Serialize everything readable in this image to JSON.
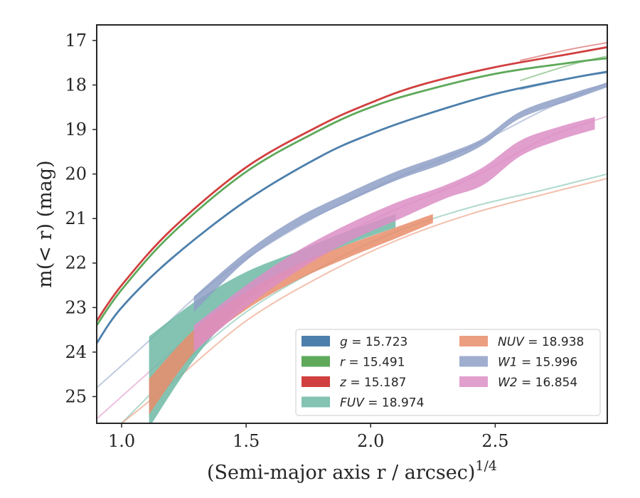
{
  "chart_data": {
    "type": "line",
    "xlabel": "(Semi-major axis r / arcsec)",
    "xlabel_sup": "1/4",
    "ylabel": "m(< r) (mag)",
    "xlim": [
      0.9,
      2.95
    ],
    "ylim": [
      25.6,
      16.65
    ],
    "y_inverted": true,
    "xticks": [
      1.0,
      1.5,
      2.0,
      2.5
    ],
    "xtick_labels": [
      "1.0",
      "1.5",
      "2.0",
      "2.5"
    ],
    "yticks": [
      17,
      18,
      19,
      20,
      21,
      22,
      23,
      24,
      25
    ],
    "ytick_labels": [
      "17",
      "18",
      "19",
      "20",
      "21",
      "22",
      "23",
      "24",
      "25"
    ],
    "legend_position": "lower-right",
    "legend_columns": 2,
    "series": [
      {
        "name": "g = 15.723",
        "var": "g",
        "val": "15.723",
        "color": "#4c7fab",
        "kind": "line",
        "x": [
          0.9,
          1.0,
          1.2,
          1.5,
          1.8,
          2.0,
          2.2,
          2.5,
          2.8,
          2.95
        ],
        "y": [
          23.8,
          23.0,
          21.9,
          20.6,
          19.6,
          19.1,
          18.7,
          18.2,
          17.85,
          17.7
        ]
      },
      {
        "name": "r = 15.491",
        "var": "r",
        "val": "15.491",
        "color": "#5ea95a",
        "kind": "line",
        "x": [
          0.9,
          1.0,
          1.2,
          1.5,
          1.8,
          2.0,
          2.2,
          2.5,
          2.8,
          2.95
        ],
        "y": [
          23.4,
          22.6,
          21.35,
          19.95,
          19.0,
          18.5,
          18.15,
          17.75,
          17.5,
          17.4
        ]
      },
      {
        "name": "z = 15.187",
        "var": "z",
        "val": "15.187",
        "color": "#d13f3f",
        "kind": "line",
        "x": [
          0.9,
          1.0,
          1.2,
          1.5,
          1.8,
          2.0,
          2.2,
          2.5,
          2.8,
          2.95
        ],
        "y": [
          23.3,
          22.5,
          21.25,
          19.85,
          18.9,
          18.4,
          18.0,
          17.6,
          17.3,
          17.15
        ]
      },
      {
        "name": "FUV = 18.974",
        "var": "FUV",
        "val": "18.974",
        "color": "#6fb9a4",
        "kind": "band",
        "x": [
          1.11,
          1.3,
          1.5,
          1.7,
          1.9,
          2.1
        ],
        "y_upper": [
          23.65,
          22.85,
          22.2,
          21.75,
          21.3,
          20.9
        ],
        "y_lower": [
          25.7,
          24.1,
          22.85,
          22.1,
          21.6,
          21.2
        ]
      },
      {
        "name": "NUV = 18.938",
        "var": "NUV",
        "val": "18.938",
        "color": "#e98d6b",
        "kind": "band",
        "x": [
          1.11,
          1.3,
          1.5,
          1.7,
          1.9,
          2.1,
          2.25
        ],
        "y_upper": [
          24.6,
          23.45,
          22.65,
          22.05,
          21.6,
          21.2,
          20.9
        ],
        "y_lower": [
          25.4,
          23.95,
          23.05,
          22.4,
          21.9,
          21.45,
          21.1
        ]
      },
      {
        "name": "W1 = 15.996",
        "var": "W1",
        "val": "15.996",
        "color": "#8e9fc6",
        "kind": "band",
        "x": [
          1.29,
          1.5,
          1.7,
          1.9,
          2.1,
          2.3,
          2.45,
          2.6,
          2.8,
          2.95
        ],
        "y_upper": [
          22.75,
          21.75,
          21.0,
          20.45,
          19.95,
          19.55,
          19.2,
          18.6,
          18.2,
          17.95
        ],
        "y_lower": [
          23.1,
          21.95,
          21.2,
          20.65,
          20.15,
          19.75,
          19.35,
          18.75,
          18.35,
          18.05
        ]
      },
      {
        "name": "W2 = 16.854",
        "var": "W2",
        "val": "16.854",
        "color": "#dc8ec5",
        "kind": "band",
        "x": [
          1.29,
          1.5,
          1.7,
          1.9,
          2.1,
          2.3,
          2.45,
          2.6,
          2.75,
          2.9
        ],
        "y_upper": [
          23.4,
          22.5,
          21.75,
          21.15,
          20.65,
          20.25,
          19.85,
          19.25,
          18.95,
          18.72
        ],
        "y_lower": [
          24.0,
          23.0,
          22.2,
          21.55,
          21.05,
          20.55,
          20.25,
          19.6,
          19.25,
          19.0
        ]
      }
    ],
    "faint_extensions": [
      {
        "color": "#4c7fab",
        "x": [
          2.6,
          2.8,
          2.95
        ],
        "y": [
          18.1,
          17.85,
          17.72
        ]
      },
      {
        "color": "#5ea95a",
        "x": [
          2.6,
          2.8,
          2.95
        ],
        "y": [
          17.9,
          17.55,
          17.35
        ]
      },
      {
        "color": "#d13f3f",
        "x": [
          2.6,
          2.8,
          2.95
        ],
        "y": [
          17.45,
          17.2,
          17.05
        ]
      },
      {
        "color": "#6fb9a4",
        "x": [
          1.0,
          1.2,
          1.5,
          1.8,
          2.1,
          2.4,
          2.7,
          2.95
        ],
        "y": [
          25.6,
          24.5,
          23.1,
          22.1,
          21.3,
          20.75,
          20.35,
          20.0
        ]
      },
      {
        "color": "#e98d6b",
        "x": [
          1.0,
          1.2,
          1.5,
          1.8,
          2.1,
          2.4,
          2.7,
          2.95
        ],
        "y": [
          25.6,
          24.7,
          23.3,
          22.3,
          21.5,
          20.9,
          20.45,
          20.1
        ]
      },
      {
        "color": "#8e9fc6",
        "x": [
          0.9,
          1.1,
          1.3,
          1.5,
          1.8,
          2.1,
          2.4,
          2.7,
          2.95
        ],
        "y": [
          24.8,
          23.8,
          22.75,
          21.9,
          20.9,
          20.1,
          19.4,
          18.55,
          17.95
        ]
      },
      {
        "color": "#dc8ec5",
        "x": [
          0.9,
          1.1,
          1.3,
          1.5,
          1.8,
          2.1,
          2.4,
          2.7,
          2.95
        ],
        "y": [
          25.5,
          24.5,
          23.5,
          22.6,
          21.6,
          20.8,
          20.1,
          19.2,
          18.7
        ]
      }
    ]
  }
}
